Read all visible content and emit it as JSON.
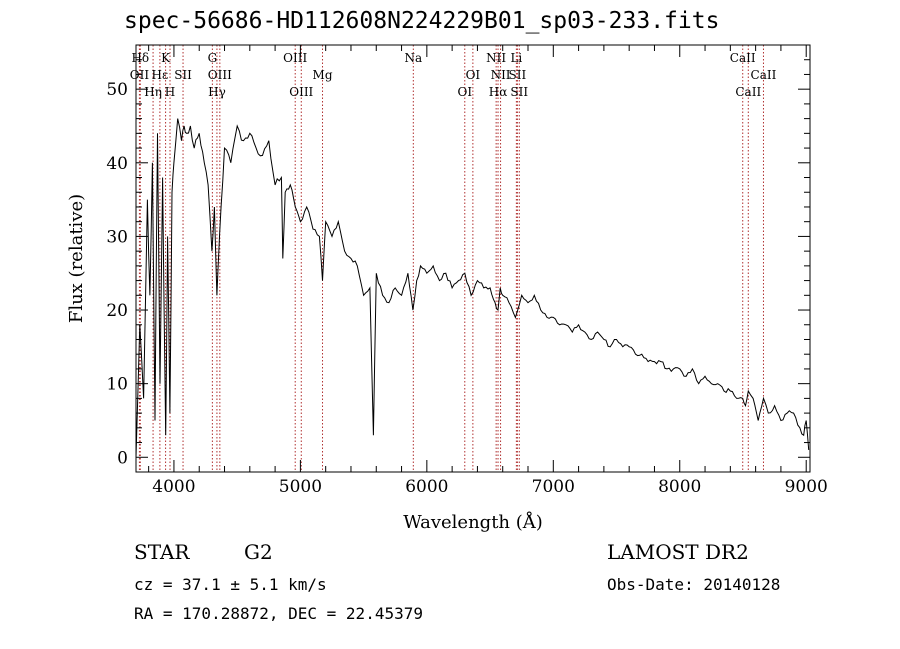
{
  "title": "spec-56686-HD112608N224229B01_sp03-233.fits",
  "info": {
    "object_type": "STAR",
    "subclass": "G2",
    "survey": "LAMOST DR2",
    "cz": "cz = 37.1 ± 5.1 km/s",
    "obs_date": "Obs-Date: 20140128",
    "ra_dec": "RA = 170.28872, DEC =  22.45379"
  },
  "chart_data": {
    "type": "line",
    "title": "spec-56686-HD112608N224229B01_sp03-233.fits",
    "xlabel": "Wavelength (Å)",
    "ylabel": "Flux (relative)",
    "xlim": [
      3700,
      9030
    ],
    "ylim": [
      -2,
      56
    ],
    "xticks": [
      4000,
      5000,
      6000,
      7000,
      8000,
      9000
    ],
    "yticks": [
      0,
      10,
      20,
      30,
      40,
      50
    ],
    "grid": false,
    "line_color": "#000000",
    "marker_color": "#b03030",
    "spectral_lines": [
      {
        "label": "Hδ",
        "x": 3734,
        "row": 0
      },
      {
        "label": "K",
        "x": 3934,
        "row": 0
      },
      {
        "label": "G",
        "x": 4304,
        "row": 0
      },
      {
        "label": "OIII",
        "x": 4959,
        "row": 0
      },
      {
        "label": "Na",
        "x": 5893,
        "row": 0
      },
      {
        "label": "NII",
        "x": 6548,
        "row": 0
      },
      {
        "label": "Li",
        "x": 6708,
        "row": 0
      },
      {
        "label": "CaII",
        "x": 8498,
        "row": 0
      },
      {
        "label": "OII",
        "x": 3727,
        "row": 1
      },
      {
        "label": "Hε",
        "x": 3889,
        "row": 1
      },
      {
        "label": "SII",
        "x": 4072,
        "row": 1
      },
      {
        "label": "OIII",
        "x": 4363,
        "row": 1
      },
      {
        "label": "Mg",
        "x": 5175,
        "row": 1
      },
      {
        "label": "OI",
        "x": 6364,
        "row": 1
      },
      {
        "label": "NII",
        "x": 6583,
        "row": 1
      },
      {
        "label": "SII",
        "x": 6716,
        "row": 1
      },
      {
        "label": "CaII",
        "x": 8662,
        "row": 1
      },
      {
        "label": "Hη",
        "x": 3835,
        "row": 2
      },
      {
        "label": "H",
        "x": 3969,
        "row": 2
      },
      {
        "label": "Hγ",
        "x": 4340,
        "row": 2
      },
      {
        "label": "OIII",
        "x": 5007,
        "row": 2
      },
      {
        "label": "OI",
        "x": 6300,
        "row": 2
      },
      {
        "label": "Hα",
        "x": 6563,
        "row": 2
      },
      {
        "label": "SII",
        "x": 6731,
        "row": 2
      },
      {
        "label": "CaII",
        "x": 8542,
        "row": 2
      }
    ],
    "series": [
      {
        "x": [
          3700,
          3730,
          3760,
          3790,
          3810,
          3830,
          3850,
          3870,
          3890,
          3910,
          3935,
          3950,
          3968,
          3985,
          4000,
          4030,
          4060,
          4080,
          4100,
          4130,
          4160,
          4200,
          4240,
          4270,
          4300,
          4320,
          4340,
          4360,
          4400,
          4450,
          4500,
          4550,
          4600,
          4650,
          4700,
          4750,
          4800,
          4850,
          4861,
          4880,
          4920,
          4960,
          5000,
          5050,
          5100,
          5150,
          5175,
          5200,
          5250,
          5300,
          5350,
          5400,
          5450,
          5500,
          5550,
          5577,
          5600,
          5650,
          5700,
          5750,
          5800,
          5850,
          5890,
          5920,
          5950,
          6000,
          6050,
          6100,
          6150,
          6200,
          6250,
          6300,
          6350,
          6400,
          6450,
          6500,
          6540,
          6563,
          6580,
          6600,
          6650,
          6700,
          6750,
          6800,
          6850,
          6900,
          6950,
          7000,
          7050,
          7100,
          7150,
          7200,
          7250,
          7300,
          7350,
          7400,
          7450,
          7500,
          7550,
          7600,
          7650,
          7700,
          7750,
          7800,
          7850,
          7900,
          7950,
          8000,
          8050,
          8100,
          8150,
          8200,
          8250,
          8300,
          8350,
          8400,
          8450,
          8498,
          8520,
          8542,
          8580,
          8620,
          8662,
          8700,
          8750,
          8800,
          8850,
          8900,
          8950,
          8980,
          9000,
          9020
        ],
        "y": [
          0,
          18,
          8,
          35,
          22,
          40,
          5,
          44,
          10,
          38,
          3,
          30,
          6,
          36,
          40,
          46,
          43,
          45,
          44,
          45,
          42,
          44,
          40,
          37,
          28,
          34,
          22,
          30,
          42,
          40,
          45,
          43,
          44,
          42,
          41,
          43,
          37,
          38,
          27,
          36,
          37,
          34,
          32,
          34,
          31,
          30,
          24,
          32,
          30,
          32,
          28,
          27,
          26,
          22,
          23,
          3,
          25,
          22,
          21,
          23,
          22,
          25,
          20,
          24,
          26,
          25,
          26,
          24,
          25,
          23,
          24,
          25,
          22,
          24,
          23,
          23,
          21,
          20,
          23,
          22,
          21,
          19,
          22,
          21,
          22,
          20,
          19,
          19,
          18,
          18,
          17,
          18,
          17,
          16,
          17,
          16,
          15,
          16,
          15,
          15,
          14,
          14,
          13,
          13,
          13,
          12,
          12,
          12,
          11,
          12,
          10,
          11,
          10,
          10,
          9,
          9,
          8,
          8,
          7,
          9,
          8,
          5,
          8,
          6,
          7,
          5,
          6,
          6,
          4,
          3,
          5,
          1
        ]
      }
    ]
  }
}
